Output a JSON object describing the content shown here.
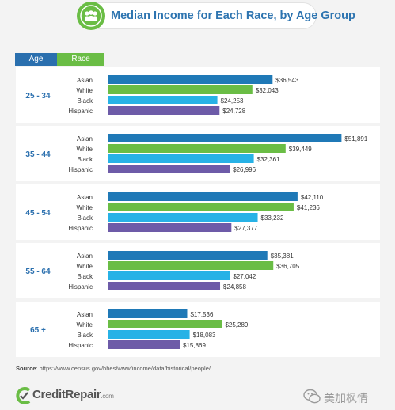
{
  "title": "Median Income for Each Race, by Age Group",
  "icon": "people-group-icon",
  "headers": {
    "age": "Age",
    "race": "Race"
  },
  "colors": {
    "Asian": "#1f79b7",
    "White": "#6abd45",
    "Black": "#27b2e6",
    "Hispanic": "#6d5ba8",
    "age_label": "#2a6fae",
    "title": "#2d74b0"
  },
  "chart_data": {
    "type": "bar",
    "orientation": "horizontal",
    "title": "Median Income for Each Race, by Age Group",
    "xlabel": "",
    "ylabel": "",
    "xlim": [
      0,
      55000
    ],
    "grid": false,
    "legend": "none",
    "series_names": [
      "Asian",
      "White",
      "Black",
      "Hispanic"
    ],
    "groups": [
      {
        "age": "25 - 34",
        "values": [
          36543,
          32043,
          24253,
          24728
        ],
        "labels": [
          "$36,543",
          "$32,043",
          "$24,253",
          "$24,728"
        ]
      },
      {
        "age": "35 - 44",
        "values": [
          51891,
          39449,
          32361,
          26996
        ],
        "labels": [
          "$51,891",
          "$39,449",
          "$32,361",
          "$26,996"
        ]
      },
      {
        "age": "45 - 54",
        "values": [
          42110,
          41236,
          33232,
          27377
        ],
        "labels": [
          "$42,110",
          "$41,236",
          "$33,232",
          "$27,377"
        ]
      },
      {
        "age": "55 - 64",
        "values": [
          35381,
          36705,
          27042,
          24858
        ],
        "labels": [
          "$35,381",
          "$36,705",
          "$27,042",
          "$24,858"
        ]
      },
      {
        "age": "65 +",
        "values": [
          17536,
          25289,
          18083,
          15869
        ],
        "labels": [
          "$17,536",
          "$25,289",
          "$18,083",
          "$15,869"
        ]
      }
    ]
  },
  "source": {
    "label": "Source",
    "url": ": https://www.census.gov/hhes/www/income/data/historical/people/"
  },
  "logo": {
    "name": "CreditRepair",
    "suffix": ".com",
    "icon": "creditrepair-logo-icon"
  },
  "watermark": {
    "text": "美加枫情",
    "icon": "wechat-icon"
  }
}
